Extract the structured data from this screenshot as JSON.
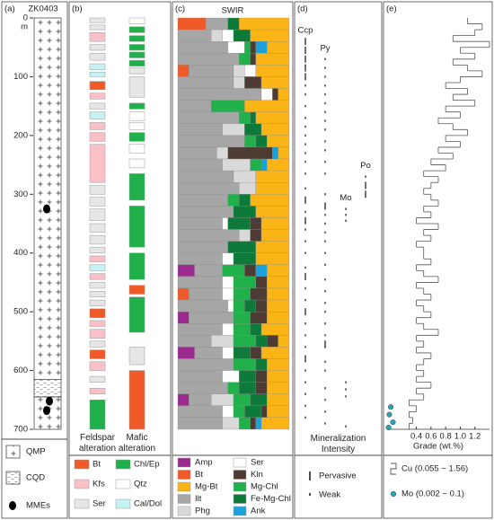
{
  "chart_data": [
    {
      "type": "lithology",
      "panel_label": "(a)",
      "title": "ZK0403",
      "y_unit": "m",
      "ylim": [
        0,
        700
      ],
      "yticks": [
        0,
        100,
        200,
        300,
        400,
        500,
        600,
        700
      ],
      "from": [
        0,
        615,
        645
      ],
      "to": [
        615,
        645,
        700
      ],
      "classes": [
        "QMP",
        "CQD",
        "QMP"
      ],
      "mme_depths": [
        325,
        652,
        668
      ],
      "legend": [
        "QMP",
        "CQD",
        "MMEs"
      ]
    },
    {
      "type": "interval",
      "panel_label": "(b)",
      "ylim": [
        0,
        700
      ],
      "columns": [
        {
          "name": "Feldspar alteration",
          "from": [
            0,
            12,
            25,
            45,
            60,
            78,
            92,
            108,
            128,
            145,
            160,
            178,
            195,
            215,
            285,
            305,
            325,
            350,
            370,
            390,
            405,
            420,
            435,
            450,
            465,
            480,
            495,
            515,
            530,
            550,
            565,
            585,
            610,
            630,
            650
          ],
          "to": [
            8,
            20,
            40,
            55,
            72,
            88,
            100,
            122,
            138,
            155,
            172,
            190,
            210,
            280,
            300,
            320,
            345,
            365,
            385,
            400,
            415,
            430,
            445,
            460,
            475,
            490,
            510,
            525,
            545,
            560,
            580,
            600,
            620,
            640,
            700
          ],
          "classes": [
            "Ser",
            "Ser",
            "Kfs",
            "Ser",
            "Ser",
            "Cal/Dol",
            "Cal/Dol",
            "Bt",
            "Kfs",
            "Ser",
            "Cal/Dol",
            "Kfs",
            "Kfs",
            "Kfs",
            "Ser",
            "Ser",
            "Ser",
            "Ser",
            "Ser",
            "Ser",
            "Kfs",
            "Cal/Dol",
            "Kfs",
            "Ser",
            "Ser",
            "Ser",
            "Bt",
            "Kfs",
            "Kfs",
            "Ser",
            "Bt",
            "Kfs",
            "Ser",
            "Kfs",
            "Chl/Ep"
          ]
        },
        {
          "name": "Mafic alteration",
          "from": [
            0,
            15,
            30,
            45,
            58,
            72,
            85,
            100,
            145,
            160,
            178,
            195,
            215,
            240,
            265,
            320,
            400,
            455,
            475,
            560,
            600
          ],
          "to": [
            10,
            25,
            40,
            55,
            68,
            82,
            95,
            135,
            155,
            175,
            190,
            210,
            230,
            255,
            310,
            390,
            445,
            470,
            535,
            590,
            700
          ],
          "classes": [
            "Qtz",
            "Chl/Ep",
            "Chl/Ep",
            "Chl/Ep",
            "Chl/Ep",
            "Chl/Ep",
            "Ser",
            "Ser",
            "Chl/Ep",
            "Qtz",
            "Qtz",
            "Chl/Ep",
            "Qtz",
            "Qtz",
            "Chl/Ep",
            "Chl/Ep",
            "Chl/Ep",
            "Bt",
            "Chl/Ep",
            "Ser",
            "Bt"
          ]
        }
      ],
      "legend": [
        {
          "name": "Bt",
          "color": "#f05a28"
        },
        {
          "name": "Chl/Ep",
          "color": "#20b04b"
        },
        {
          "name": "Kfs",
          "color": "#f9c0c8"
        },
        {
          "name": "Qtz",
          "color": "#ffffff"
        },
        {
          "name": "Ser",
          "color": "#e6e6e6"
        },
        {
          "name": "Cal/Dol",
          "color": "#c5f3f5"
        }
      ]
    },
    {
      "type": "stacked",
      "panel_label": "(c)",
      "title": "SWIR",
      "ylim": [
        0,
        700
      ],
      "xlim": [
        0,
        100
      ],
      "depths": [
        0,
        20,
        40,
        60,
        80,
        100,
        120,
        140,
        160,
        180,
        200,
        220,
        240,
        260,
        280,
        300,
        320,
        340,
        360,
        380,
        400,
        420,
        440,
        460,
        480,
        500,
        520,
        540,
        560,
        580,
        600,
        620,
        640,
        660,
        680
      ],
      "series": [
        {
          "name": "Bt",
          "color": "#f05a28",
          "values": [
            25,
            0,
            0,
            0,
            10,
            0,
            0,
            0,
            0,
            0,
            0,
            0,
            0,
            0,
            0,
            0,
            0,
            0,
            0,
            0,
            0,
            0,
            0,
            10,
            0,
            0,
            0,
            0,
            0,
            0,
            0,
            0,
            0,
            0,
            0
          ]
        },
        {
          "name": "Amp",
          "color": "#9b2a8e",
          "values": [
            0,
            0,
            0,
            0,
            0,
            0,
            0,
            0,
            0,
            0,
            0,
            0,
            0,
            0,
            0,
            0,
            0,
            0,
            0,
            0,
            0,
            15,
            0,
            0,
            0,
            10,
            0,
            0,
            15,
            0,
            0,
            0,
            10,
            0,
            0
          ]
        },
        {
          "name": "Ilt",
          "color": "#a6a6a6",
          "values": [
            20,
            30,
            45,
            55,
            40,
            50,
            75,
            30,
            55,
            40,
            60,
            35,
            40,
            50,
            55,
            45,
            50,
            40,
            55,
            45,
            40,
            25,
            40,
            30,
            45,
            40,
            40,
            30,
            25,
            50,
            40,
            45,
            20,
            40,
            40
          ]
        },
        {
          "name": "Phg",
          "color": "#d9d9d9",
          "values": [
            0,
            10,
            0,
            0,
            10,
            10,
            0,
            0,
            0,
            20,
            0,
            10,
            25,
            20,
            15,
            0,
            0,
            0,
            10,
            0,
            0,
            0,
            0,
            0,
            0,
            0,
            0,
            20,
            0,
            0,
            0,
            0,
            20,
            0,
            15
          ]
        },
        {
          "name": "Ser",
          "color": "#ffffff",
          "values": [
            0,
            10,
            15,
            0,
            10,
            0,
            10,
            0,
            0,
            0,
            0,
            0,
            0,
            0,
            0,
            0,
            0,
            5,
            0,
            0,
            10,
            0,
            10,
            10,
            5,
            0,
            10,
            0,
            10,
            0,
            15,
            0,
            0,
            10,
            0
          ]
        },
        {
          "name": "Mg-Chl",
          "color": "#21b14b",
          "values": [
            0,
            0,
            5,
            10,
            0,
            0,
            0,
            30,
            10,
            0,
            10,
            0,
            10,
            0,
            0,
            10,
            0,
            0,
            0,
            0,
            0,
            20,
            20,
            15,
            10,
            15,
            15,
            20,
            0,
            20,
            0,
            10,
            15,
            10,
            10
          ]
        },
        {
          "name": "Fe-Mg-Chl",
          "color": "#0d7a3a",
          "values": [
            10,
            15,
            0,
            0,
            0,
            0,
            0,
            0,
            5,
            15,
            10,
            0,
            0,
            0,
            0,
            10,
            20,
            20,
            0,
            25,
            20,
            0,
            0,
            0,
            10,
            0,
            10,
            10,
            15,
            10,
            15,
            15,
            15,
            15,
            0
          ]
        },
        {
          "name": "Kln",
          "color": "#4d3b34",
          "values": [
            0,
            0,
            5,
            5,
            0,
            15,
            5,
            0,
            0,
            0,
            0,
            40,
            0,
            0,
            0,
            0,
            0,
            10,
            10,
            0,
            0,
            10,
            10,
            15,
            10,
            15,
            0,
            10,
            10,
            0,
            10,
            10,
            0,
            5,
            5
          ]
        },
        {
          "name": "Ank",
          "color": "#1ba1dc",
          "values": [
            0,
            0,
            10,
            0,
            0,
            0,
            0,
            0,
            0,
            0,
            0,
            5,
            5,
            0,
            0,
            0,
            0,
            0,
            0,
            0,
            0,
            10,
            0,
            0,
            0,
            0,
            0,
            0,
            0,
            0,
            0,
            0,
            0,
            0,
            5
          ]
        },
        {
          "name": "Mg-Bt",
          "color": "#fbb416",
          "values": [
            45,
            35,
            20,
            30,
            30,
            25,
            10,
            40,
            30,
            25,
            20,
            10,
            20,
            30,
            30,
            35,
            30,
            25,
            25,
            30,
            30,
            20,
            20,
            20,
            20,
            20,
            25,
            10,
            25,
            20,
            20,
            20,
            20,
            20,
            25
          ]
        }
      ],
      "legend": [
        "Amp",
        "Ser",
        "Bt",
        "Kln",
        "Mg-Bt",
        "Mg-Chl",
        "Ilt",
        "Fe-Mg-Chl",
        "Phg",
        "Ank"
      ]
    },
    {
      "type": "strip",
      "panel_label": "(d)",
      "title": "Mineralization Intensity",
      "ylim": [
        0,
        700
      ],
      "series": [
        {
          "name": "Ccp",
          "pervasive": [
            40,
            55,
            70,
            85,
            100,
            310,
            345,
            440,
            500,
            580
          ],
          "weak": [
            115,
            130,
            150,
            170,
            185,
            200,
            215,
            230,
            245,
            265,
            290,
            330,
            360,
            380,
            400,
            425,
            460,
            480,
            520,
            540,
            560,
            600,
            620,
            640,
            660,
            680
          ]
        },
        {
          "name": "Py",
          "pervasive": [
            320,
            555
          ],
          "weak": [
            70,
            85,
            100,
            115,
            130,
            145,
            160,
            175,
            190,
            210,
            225,
            245,
            265,
            300,
            335,
            350,
            365,
            380,
            400,
            420,
            445,
            465,
            485,
            500,
            520,
            540,
            560,
            585,
            600,
            630,
            650,
            670,
            690
          ]
        },
        {
          "name": "Mo",
          "weak": [
            325,
            335,
            345,
            620,
            632,
            644,
            695
          ]
        },
        {
          "name": "Po",
          "pervasive": [
            285,
            300
          ],
          "weak": [
            270
          ]
        }
      ],
      "legend": [
        "Pervasive",
        "Weak"
      ]
    },
    {
      "type": "step",
      "panel_label": "(e)",
      "xlabel": "Grade (wt.%)",
      "ylim": [
        0,
        700
      ],
      "xlim": [
        0,
        1.4
      ],
      "xticks": [
        0.4,
        0.6,
        0.8,
        {
          "value": 1,
          "label": "1.0"
        },
        1.2
      ],
      "series": [
        {
          "name": "Cu (0.055 ~ 1.56)",
          "color": "#555555",
          "depths": [
            0,
            10,
            20,
            30,
            40,
            50,
            60,
            70,
            80,
            90,
            100,
            110,
            120,
            130,
            140,
            150,
            160,
            170,
            180,
            190,
            200,
            210,
            220,
            230,
            240,
            250,
            260,
            270,
            280,
            290,
            300,
            310,
            320,
            330,
            340,
            350,
            360,
            370,
            380,
            390,
            400,
            410,
            420,
            430,
            440,
            450,
            460,
            470,
            480,
            490,
            500,
            510,
            520,
            530,
            540,
            550,
            560,
            570,
            580,
            590,
            600,
            610,
            620,
            630,
            640,
            650,
            660,
            670,
            680,
            690
          ],
          "values": [
            1.1,
            1.3,
            1.2,
            0.9,
            1.4,
            1.0,
            1.2,
            0.9,
            1.1,
            1.3,
            1.0,
            0.8,
            1.1,
            0.9,
            1.2,
            0.8,
            1.0,
            0.7,
            0.9,
            1.1,
            0.8,
            1.0,
            0.7,
            0.9,
            0.6,
            0.8,
            0.5,
            0.7,
            0.6,
            0.5,
            0.6,
            0.7,
            0.5,
            0.6,
            0.4,
            0.7,
            0.5,
            0.6,
            0.4,
            0.5,
            0.5,
            0.6,
            0.4,
            0.5,
            0.7,
            0.4,
            0.5,
            0.6,
            0.4,
            0.5,
            0.6,
            0.4,
            0.5,
            0.7,
            0.4,
            0.5,
            0.4,
            0.6,
            0.5,
            0.4,
            0.5,
            0.4,
            0.6,
            0.4,
            0.5,
            0.3,
            0.4,
            0.3,
            0.35,
            0.3
          ]
        },
        {
          "name": "Mo (0.002 ~ 0.1)",
          "color": "#2aa3b8",
          "depths": [
            662,
            675,
            688,
            697
          ],
          "values": [
            0.05,
            0.03,
            0.08,
            0.02
          ]
        }
      ]
    }
  ]
}
